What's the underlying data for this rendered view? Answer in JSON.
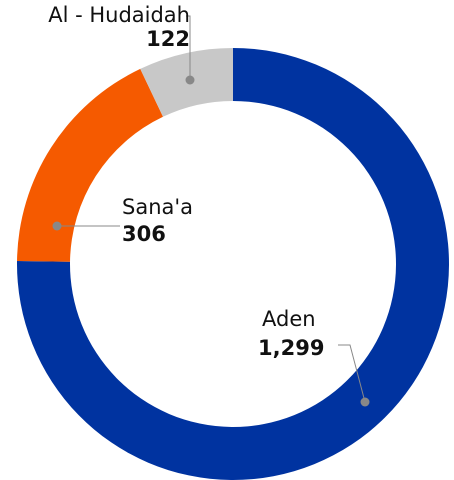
{
  "chart_data": {
    "type": "donut",
    "categories": [
      "Aden",
      "Sana'a",
      "Al - Hudaidah"
    ],
    "values": [
      1299,
      306,
      122
    ],
    "value_labels": [
      "1,299",
      "306",
      "122"
    ],
    "colors": [
      "#0033a0",
      "#f55a00",
      "#c8c8c8"
    ]
  }
}
